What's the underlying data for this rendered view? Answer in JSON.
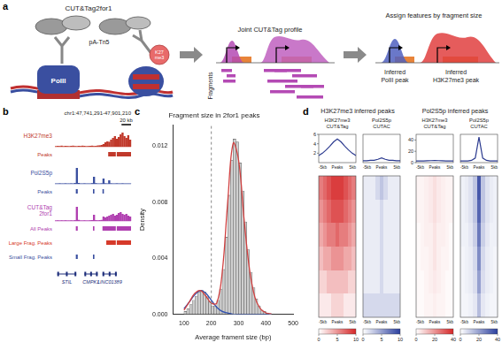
{
  "figure": {
    "panel_labels": [
      "a",
      "b",
      "c",
      "d"
    ],
    "a": {
      "title": "CUT&Tag2for1",
      "enzyme": "pA-Tn5",
      "polymerase": "PolII",
      "mark": [
        "K27",
        "me3"
      ],
      "step1": "Joint CUT&Tag profile",
      "fragments": "Fragments",
      "step2": "Assign features by fragment size",
      "inferred_small": [
        "Inferred",
        "PolII peak"
      ],
      "inferred_large": [
        "Inferred",
        "H3K27me3 peak"
      ]
    },
    "b": {
      "coordinates": "chr1:47,741,291-47,901,210",
      "scale_bar": {
        "label": "20 kb",
        "length": 20
      },
      "region_kb": [
        0,
        160
      ],
      "ylim": [
        0,
        10
      ],
      "tracks": [
        {
          "label": [
            "H3K27me3"
          ],
          "type": "signal",
          "color": "#c0392b",
          "values": [
            0.3,
            0.5,
            0.4,
            0.6,
            0.3,
            0.5,
            0.4,
            0.3,
            0.5,
            0.6,
            0.4,
            0.3,
            0.5,
            0.4,
            0.6,
            0.5,
            0.3,
            0.4,
            0.5,
            0.6,
            0.4,
            0.5,
            0.7,
            0.8,
            1.0,
            1.5,
            2.5,
            3,
            2.8,
            4,
            5,
            6,
            4.5,
            5.5,
            7,
            8,
            6,
            5,
            6.5,
            4
          ]
        },
        {
          "label": [
            "Peaks"
          ],
          "type": "peaks",
          "color": "#c0392b",
          "intervals": [
            [
              112,
              128
            ],
            [
              130,
              160
            ]
          ]
        },
        {
          "label": [
            "Pol2S5p"
          ],
          "type": "signal",
          "color": "#3a4fa0",
          "values": [
            0.2,
            0.2,
            0.3,
            0.2,
            0.2,
            0.3,
            0.2,
            0.2,
            0.3,
            0.2,
            0.5,
            9,
            0.5,
            0.2,
            0.2,
            0.3,
            0.2,
            0.2,
            0.2,
            0.4,
            4,
            0.4,
            0.2,
            0.2,
            0.3,
            3,
            0.3,
            0.2,
            2,
            0.3,
            0.2,
            0.2,
            0.3,
            0.2,
            0.2,
            0.3,
            0.2,
            0.2,
            0.2,
            0.2
          ]
        },
        {
          "label": [
            "Peaks"
          ],
          "type": "peaks",
          "color": "#3a4fa0",
          "intervals": [
            [
              44,
              48
            ],
            [
              80,
              83
            ],
            [
              100,
              103
            ]
          ]
        },
        {
          "label": [
            "CUT&Tag",
            "2for1"
          ],
          "type": "signal",
          "color": "#b03fb0",
          "values": [
            0.3,
            0.4,
            0.3,
            0.4,
            0.3,
            0.4,
            0.3,
            0.3,
            0.4,
            0.3,
            0.5,
            8,
            0.6,
            0.3,
            0.3,
            0.4,
            0.3,
            0.3,
            0.4,
            0.5,
            3.5,
            0.5,
            0.4,
            0.5,
            0.6,
            2.5,
            2,
            2.5,
            3,
            3.5,
            4,
            3,
            3.5,
            4.5,
            5,
            4,
            3.5,
            4,
            3,
            2.5
          ]
        },
        {
          "label": [
            "All Peaks"
          ],
          "type": "peaks",
          "color": "#b03fb0",
          "intervals": [
            [
              44,
              48
            ],
            [
              80,
              83
            ],
            [
              100,
              128
            ],
            [
              130,
              160
            ]
          ]
        },
        {
          "label": [
            "Large Frag. Peaks"
          ],
          "type": "peaks",
          "color": "#d63a2a",
          "intervals": [
            [
              108,
              128
            ],
            [
              130,
              160
            ]
          ]
        },
        {
          "label": [
            "Small Frag. Peaks"
          ],
          "type": "peaks",
          "color": "#3a4fa0",
          "intervals": [
            [
              44,
              48
            ],
            [
              80,
              83
            ]
          ]
        }
      ],
      "genes": [
        {
          "name": "STIL",
          "start": 5,
          "end": 45
        },
        {
          "name": "CMPK1",
          "start": 62,
          "end": 90
        },
        {
          "name": "LINC01389",
          "start": 100,
          "end": 130
        }
      ]
    },
    "d": {
      "x_labels": [
        "-5kb",
        "Peaks",
        "5kb"
      ],
      "profile_color": "#2b3a8f",
      "groups": [
        {
          "title": "H3K27me3 inferred peaks",
          "ylim": [
            0,
            6
          ],
          "yticks": [
            2,
            4,
            6
          ],
          "color_range": [
            0,
            10
          ],
          "color_ticks": [
            0,
            5,
            10
          ],
          "columns": [
            {
              "lines": [
                "H3K27me3",
                "CUT&Tag"
              ],
              "color": "#d62728",
              "profile": [
                1.5,
                2,
                2.7,
                3.5,
                4.4,
                5,
                4.4,
                3.5,
                2.7,
                2,
                1.5
              ],
              "cells": [
                [
                  6,
                  7,
                  8,
                  9,
                  9,
                  9,
                  8,
                  7,
                  6
                ],
                [
                  5,
                  6,
                  7,
                  8,
                  8,
                  8,
                  7,
                  6,
                  5
                ],
                [
                  4,
                  5,
                  6,
                  6,
                  7,
                  6,
                  6,
                  5,
                  4
                ],
                [
                  3,
                  4,
                  4,
                  5,
                  5,
                  5,
                  4,
                  4,
                  3
                ],
                [
                  2,
                  2,
                  3,
                  3,
                  3,
                  3,
                  3,
                  2,
                  2
                ],
                [
                  1,
                  1,
                  1,
                  2,
                  2,
                  2,
                  1,
                  1,
                  1
                ]
              ]
            },
            {
              "lines": [
                "Pol2S5p",
                "CUTAC"
              ],
              "color": "#2b3f9e",
              "profile": [
                0.4,
                0.4,
                0.5,
                0.5,
                0.7,
                1.0,
                0.7,
                0.5,
                0.5,
                0.4,
                0.4
              ],
              "cells": [
                [
                  1,
                  1,
                  1,
                  2,
                  3,
                  2,
                  1,
                  1,
                  1
                ],
                [
                  1,
                  1,
                  1,
                  1,
                  2,
                  1,
                  1,
                  1,
                  1
                ],
                [
                  1,
                  1,
                  1,
                  1,
                  2,
                  1,
                  1,
                  1,
                  1
                ],
                [
                  1,
                  1,
                  1,
                  1,
                  2,
                  1,
                  1,
                  1,
                  1
                ],
                [
                  1,
                  1,
                  1,
                  1,
                  2,
                  1,
                  1,
                  1,
                  1
                ],
                [
                  2,
                  2,
                  2,
                  2,
                  2,
                  2,
                  2,
                  2,
                  2
                ]
              ]
            }
          ]
        },
        {
          "title": "Pol2S5p inferred peaks",
          "ylim": [
            0,
            50
          ],
          "yticks": [
            0,
            20,
            40
          ],
          "color_range": [
            0,
            40
          ],
          "color_ticks": [
            0,
            20,
            40
          ],
          "columns": [
            {
              "lines": [
                "H3K27me3",
                "CUT&Tag"
              ],
              "color": "#d62728",
              "profile": [
                3,
                3,
                3,
                3.2,
                3.5,
                3.8,
                3.5,
                3.2,
                3,
                3,
                3
              ],
              "cells": [
                [
                  2,
                  2,
                  3,
                  4,
                  6,
                  4,
                  3,
                  2,
                  2
                ],
                [
                  2,
                  2,
                  3,
                  4,
                  6,
                  4,
                  3,
                  2,
                  2
                ],
                [
                  1,
                  2,
                  3,
                  3,
                  5,
                  3,
                  3,
                  2,
                  1
                ],
                [
                  1,
                  2,
                  2,
                  3,
                  5,
                  3,
                  2,
                  2,
                  1
                ],
                [
                  1,
                  1,
                  2,
                  3,
                  4,
                  3,
                  2,
                  1,
                  1
                ],
                [
                  1,
                  1,
                  2,
                  2,
                  3,
                  2,
                  2,
                  1,
                  1
                ]
              ]
            },
            {
              "lines": [
                "Pol2S5p",
                "CUTAC"
              ],
              "color": "#2b3f9e",
              "profile": [
                3,
                3,
                3,
                4,
                8,
                45,
                8,
                4,
                3,
                3,
                3
              ],
              "cells": [
                [
                  3,
                  4,
                  6,
                  12,
                  35,
                  12,
                  6,
                  4,
                  3
                ],
                [
                  3,
                  4,
                  6,
                  12,
                  32,
                  12,
                  6,
                  4,
                  3
                ],
                [
                  3,
                  3,
                  5,
                  10,
                  28,
                  10,
                  5,
                  3,
                  3
                ],
                [
                  2,
                  3,
                  4,
                  8,
                  24,
                  8,
                  4,
                  3,
                  2
                ],
                [
                  2,
                  3,
                  4,
                  7,
                  20,
                  7,
                  4,
                  3,
                  2
                ],
                [
                  2,
                  2,
                  3,
                  5,
                  14,
                  5,
                  3,
                  2,
                  2
                ]
              ]
            }
          ]
        }
      ]
    }
  },
  "chart_data": {
    "type": "histogram",
    "title": "Fragment size in 2for1 peaks",
    "x_label": "Average frament size (bp)",
    "y_label": "Density",
    "bins": [
      100,
      110,
      120,
      130,
      140,
      150,
      160,
      170,
      180,
      190,
      200,
      210,
      220,
      230,
      240,
      250,
      260,
      270,
      280,
      290,
      300,
      310,
      320,
      330,
      340,
      350,
      360,
      370,
      380,
      390,
      400,
      410,
      420
    ],
    "values": [
      0.0002,
      0.0004,
      0.0007,
      0.001,
      0.0013,
      0.0016,
      0.0017,
      0.0016,
      0.0013,
      0.0009,
      0.0006,
      0.0006,
      0.001,
      0.0018,
      0.0032,
      0.0055,
      0.0085,
      0.011,
      0.0125,
      0.0123,
      0.0108,
      0.0088,
      0.0066,
      0.0046,
      0.003,
      0.0019,
      0.0011,
      0.0006,
      0.0003,
      0.0002,
      0.0001,
      5e-05
    ],
    "color": "#cfcfcf",
    "xlim": [
      60,
      500
    ],
    "xticks": [
      100,
      200,
      300,
      400,
      500
    ],
    "ylim": [
      0,
      0.0135
    ],
    "yticks": [
      {
        "value": 0,
        "label": "0.000"
      },
      {
        "value": 0.004,
        "label": "0.004"
      },
      {
        "value": 0.008,
        "label": "0.008"
      },
      {
        "value": 0.012,
        "label": "0.012"
      }
    ],
    "grid": false,
    "threshold": 200,
    "curve_x": [
      100,
      120,
      140,
      160,
      180,
      200,
      220,
      240,
      260,
      280,
      300,
      320,
      340,
      360,
      380,
      400,
      420
    ],
    "curves": [
      {
        "color": "#d04040",
        "values": [
          0.0003,
          0.0009,
          0.0015,
          0.0017,
          0.0013,
          0.0008,
          0.0008,
          0.003,
          0.008,
          0.0122,
          0.011,
          0.0068,
          0.0032,
          0.0012,
          0.0004,
          0.0001,
          3e-05
        ]
      },
      {
        "color": "#3050b0",
        "values": [
          0.0004,
          0.0009,
          0.0014,
          0.0017,
          0.0015,
          0.001,
          0.0005,
          0.0002,
          0.0001,
          0,
          0,
          0,
          0,
          0,
          0,
          0,
          0
        ]
      }
    ]
  }
}
